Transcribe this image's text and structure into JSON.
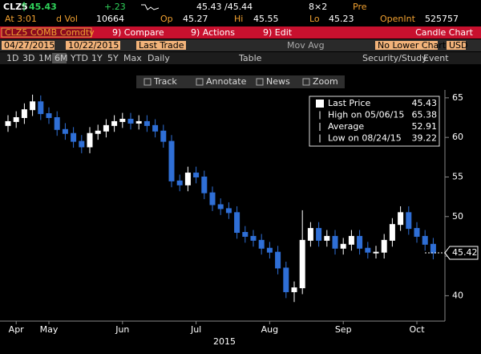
{
  "quote": {
    "ticker": "CLZ5",
    "last": "45.43",
    "change": "+.23",
    "bid_ask": "45.43 /45.44",
    "size": "8×2",
    "session": "Pre",
    "time": "At 3:01",
    "vol_label": "d Vol",
    "vol": "10664",
    "open_label": "Op",
    "open": "45.27",
    "high_label": "Hi",
    "high": "45.55",
    "low_label": "Lo",
    "low": "45.23",
    "oi_label": "OpenInt",
    "oi": "525757"
  },
  "menu": {
    "security": "CLZ5 COMB Comdty",
    "compare": "9) Compare",
    "actions": "9) Actions",
    "edit": "9) Edit",
    "view": "Candle Chart"
  },
  "controls": {
    "start": "04/27/2015",
    "end": "10/22/2015",
    "field": "Last Trade",
    "mov_avg": "Mov Avg",
    "lower": "No Lower Chart",
    "currency": "USD"
  },
  "periods": [
    "1D",
    "3D",
    "1M",
    "6M",
    "YTD",
    "1Y",
    "5Y",
    "Max"
  ],
  "frequency": "Daily",
  "table": "Table",
  "study": "Security/Study",
  "event": "Event",
  "toolbar": [
    "Track",
    "Annotate",
    "News",
    "Zoom"
  ],
  "chart_data": {
    "type": "candlestick",
    "categories": [
      null,
      "Apr",
      null,
      null,
      null,
      "May",
      null,
      null,
      null,
      null,
      null,
      null,
      null,
      null,
      "Jun",
      null,
      null,
      null,
      null,
      null,
      null,
      null,
      null,
      "Jul",
      null,
      null,
      null,
      null,
      null,
      null,
      null,
      null,
      "Aug",
      null,
      null,
      null,
      null,
      null,
      null,
      null,
      null,
      "Sep",
      null,
      null,
      null,
      null,
      null,
      null,
      null,
      null,
      "Oct",
      null,
      null
    ],
    "xlabel": "2015",
    "open": [
      61.5,
      62,
      62.5,
      63.5,
      64.5,
      63,
      62.5,
      61,
      60.5,
      59.5,
      58.8,
      60.5,
      60.8,
      61.5,
      62,
      62.3,
      61.8,
      62,
      61.5,
      60.8,
      59.5,
      54.5,
      54,
      55.5,
      55,
      53,
      51.5,
      51,
      50.5,
      48,
      47.5,
      47,
      46,
      45.5,
      43.5,
      40.5,
      41,
      47,
      48.5,
      47,
      47.5,
      46,
      46.5,
      47.5,
      46,
      45.5,
      45.5,
      47,
      49,
      50.5,
      48.5,
      47.5,
      46.5
    ],
    "high": [
      62.8,
      63.3,
      64.3,
      65.4,
      65.3,
      63.8,
      63.3,
      61.8,
      61.3,
      60.3,
      61.3,
      61.6,
      62.3,
      62.8,
      63.1,
      63.1,
      62.8,
      62.8,
      62.3,
      61.6,
      60.3,
      55.3,
      56.3,
      56.3,
      55.8,
      53.8,
      52.3,
      51.8,
      51.3,
      48.8,
      48.3,
      47.8,
      46.8,
      46.3,
      44.3,
      41.8,
      50.8,
      49.3,
      49.3,
      48.3,
      48.3,
      47.3,
      48.3,
      48.3,
      46.8,
      46.3,
      47.8,
      49.8,
      51.3,
      51.3,
      49.3,
      48.3,
      47.3
    ],
    "low": [
      60.7,
      61.2,
      61.7,
      62.7,
      62.2,
      61.7,
      60.2,
      59.7,
      58.7,
      58,
      58,
      59.7,
      60,
      60.7,
      61.2,
      61,
      61,
      60.7,
      60,
      58.7,
      53.7,
      53.2,
      53.2,
      54.2,
      52.2,
      50.7,
      50.2,
      49.7,
      47.2,
      46.7,
      46.2,
      45.2,
      44.7,
      42.7,
      39.7,
      39.2,
      40.2,
      46.2,
      46.2,
      46.2,
      45.2,
      45.2,
      45.7,
      45.2,
      44.7,
      44.7,
      44.7,
      46.2,
      48.2,
      47.7,
      46.7,
      45.7,
      44.6
    ],
    "close": [
      62,
      62.5,
      63.5,
      64.5,
      63,
      62.5,
      61,
      60.5,
      59.5,
      58.8,
      60.5,
      60.8,
      61.5,
      62,
      62.3,
      61.8,
      62,
      61.5,
      60.8,
      59.5,
      54.5,
      54,
      55.5,
      55,
      53,
      51.5,
      51,
      50.5,
      48,
      47.5,
      47,
      46,
      45.5,
      43.5,
      40.5,
      41,
      47,
      48.5,
      47,
      47.5,
      46,
      46.5,
      47.5,
      46,
      45.5,
      45.5,
      47,
      49,
      50.5,
      48.5,
      47.5,
      46.5,
      45.4
    ],
    "up_color": "#ffffff",
    "down_color": "#2f6fd6",
    "ylim": [
      37,
      66
    ],
    "yticks": [
      40,
      45,
      50,
      55,
      60,
      65
    ],
    "grid": false,
    "last_value": 45.42,
    "legend": [
      {
        "label": "Last Price",
        "value": "45.43"
      },
      {
        "label": "High on 05/06/15",
        "value": "65.38"
      },
      {
        "label": "Average",
        "value": "52.91"
      },
      {
        "label": "Low on 08/24/15",
        "value": "39.22"
      }
    ]
  }
}
